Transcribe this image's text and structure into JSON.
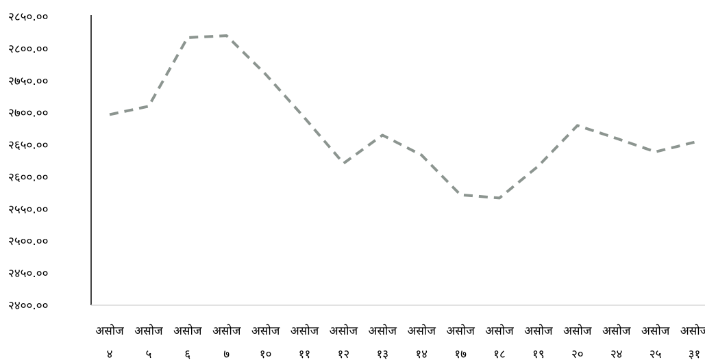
{
  "chart_data": {
    "type": "line",
    "title": "",
    "xlabel": "",
    "ylabel": "",
    "ylim": [
      2400,
      2850
    ],
    "yticks": [
      "२४००.००",
      "२४५०.००",
      "२५००.००",
      "२५५०.००",
      "२६००.००",
      "२६५०.००",
      "२७००.००",
      "२७५०.००",
      "२८००.००",
      "२८५०.००"
    ],
    "categories": [
      [
        "असोज",
        "४"
      ],
      [
        "असोज",
        "५"
      ],
      [
        "असोज",
        "६"
      ],
      [
        "असोज",
        "७"
      ],
      [
        "असोज",
        "१०"
      ],
      [
        "असोज",
        "११"
      ],
      [
        "असोज",
        "१२"
      ],
      [
        "असोज",
        "१३"
      ],
      [
        "असोज",
        "१४"
      ],
      [
        "असोज",
        "१७"
      ],
      [
        "असोज",
        "१८"
      ],
      [
        "असोज",
        "१९"
      ],
      [
        "असोज",
        "२०"
      ],
      [
        "असोज",
        "२४"
      ],
      [
        "असोज",
        "२५"
      ],
      [
        "असोज",
        "३१"
      ]
    ],
    "series": [
      {
        "values": [
          2697,
          2710,
          2817,
          2820,
          2760,
          2692,
          2621,
          2665,
          2634,
          2572,
          2567,
          2617,
          2680,
          2660,
          2639,
          2654
        ],
        "color": "#8c9590",
        "style": "dashed"
      }
    ],
    "grid": false,
    "legend": "none"
  }
}
